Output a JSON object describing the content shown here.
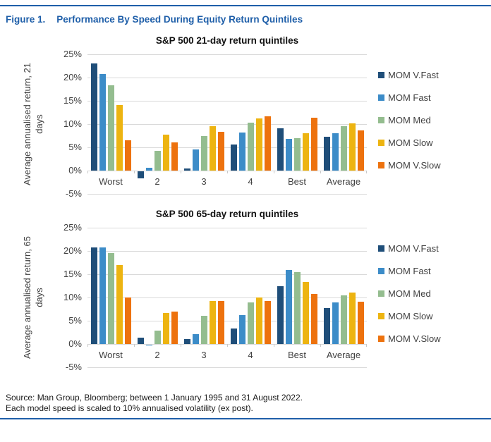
{
  "figure": {
    "label": "Figure 1.",
    "title": "Performance By Speed During Equity Return Quintiles"
  },
  "colors": {
    "accent_blue": "#1f5fa9",
    "gridline": "#d9d9d9",
    "axis_text": "#404040"
  },
  "chart_data": [
    {
      "type": "bar",
      "title": "S&P 500 21-day return quintiles",
      "ylabel": "Average annualised return, 21 days",
      "categories": [
        "Worst",
        "2",
        "3",
        "4",
        "Best",
        "Average"
      ],
      "series": [
        {
          "name": "MOM V.Fast",
          "color": "#1f4e79",
          "values": [
            23.0,
            -1.5,
            0.4,
            5.6,
            9.1,
            7.2
          ]
        },
        {
          "name": "MOM Fast",
          "color": "#3c8cc8",
          "values": [
            20.8,
            0.6,
            4.6,
            8.2,
            6.8,
            8.1
          ]
        },
        {
          "name": "MOM Med",
          "color": "#94bd8f",
          "values": [
            18.4,
            4.3,
            7.5,
            10.3,
            7.0,
            9.5
          ]
        },
        {
          "name": "MOM Slow",
          "color": "#edb411",
          "values": [
            14.1,
            7.8,
            9.5,
            11.2,
            8.1,
            10.2
          ]
        },
        {
          "name": "MOM V.Slow",
          "color": "#ed720e",
          "values": [
            6.5,
            6.1,
            8.4,
            11.6,
            11.4,
            8.7
          ]
        }
      ],
      "ylim": [
        -5,
        25
      ],
      "ytick_step": 5,
      "ytick_labels": [
        "25%",
        "20%",
        "15%",
        "10%",
        "5%",
        "0%",
        "-5%"
      ],
      "grid": true,
      "legend_position": "right"
    },
    {
      "type": "bar",
      "title": "S&P 500 65-day return quintiles",
      "ylabel": "Average annualised return, 65 days",
      "categories": [
        "Worst",
        "2",
        "3",
        "4",
        "Best",
        "Average"
      ],
      "series": [
        {
          "name": "MOM V.Fast",
          "color": "#1f4e79",
          "values": [
            20.7,
            1.3,
            1.0,
            3.3,
            12.4,
            7.8
          ]
        },
        {
          "name": "MOM Fast",
          "color": "#3c8cc8",
          "values": [
            20.7,
            -0.2,
            2.1,
            6.2,
            15.9,
            8.9
          ]
        },
        {
          "name": "MOM Med",
          "color": "#94bd8f",
          "values": [
            19.5,
            2.9,
            6.1,
            8.9,
            15.5,
            10.5
          ]
        },
        {
          "name": "MOM Slow",
          "color": "#edb411",
          "values": [
            17.0,
            6.7,
            9.2,
            10.0,
            13.3,
            11.1
          ]
        },
        {
          "name": "MOM V.Slow",
          "color": "#ed720e",
          "values": [
            10.0,
            7.0,
            9.2,
            9.2,
            10.7,
            9.1
          ]
        }
      ],
      "ylim": [
        -5,
        25
      ],
      "ytick_step": 5,
      "ytick_labels": [
        "25%",
        "20%",
        "15%",
        "10%",
        "5%",
        "0%",
        "-5%"
      ],
      "grid": true,
      "legend_position": "right"
    }
  ],
  "footer": {
    "line1": "Source: Man Group, Bloomberg; between 1 January 1995 and 31 August 2022.",
    "line2": "Each model speed is scaled to 10% annualised volatility (ex post)."
  }
}
